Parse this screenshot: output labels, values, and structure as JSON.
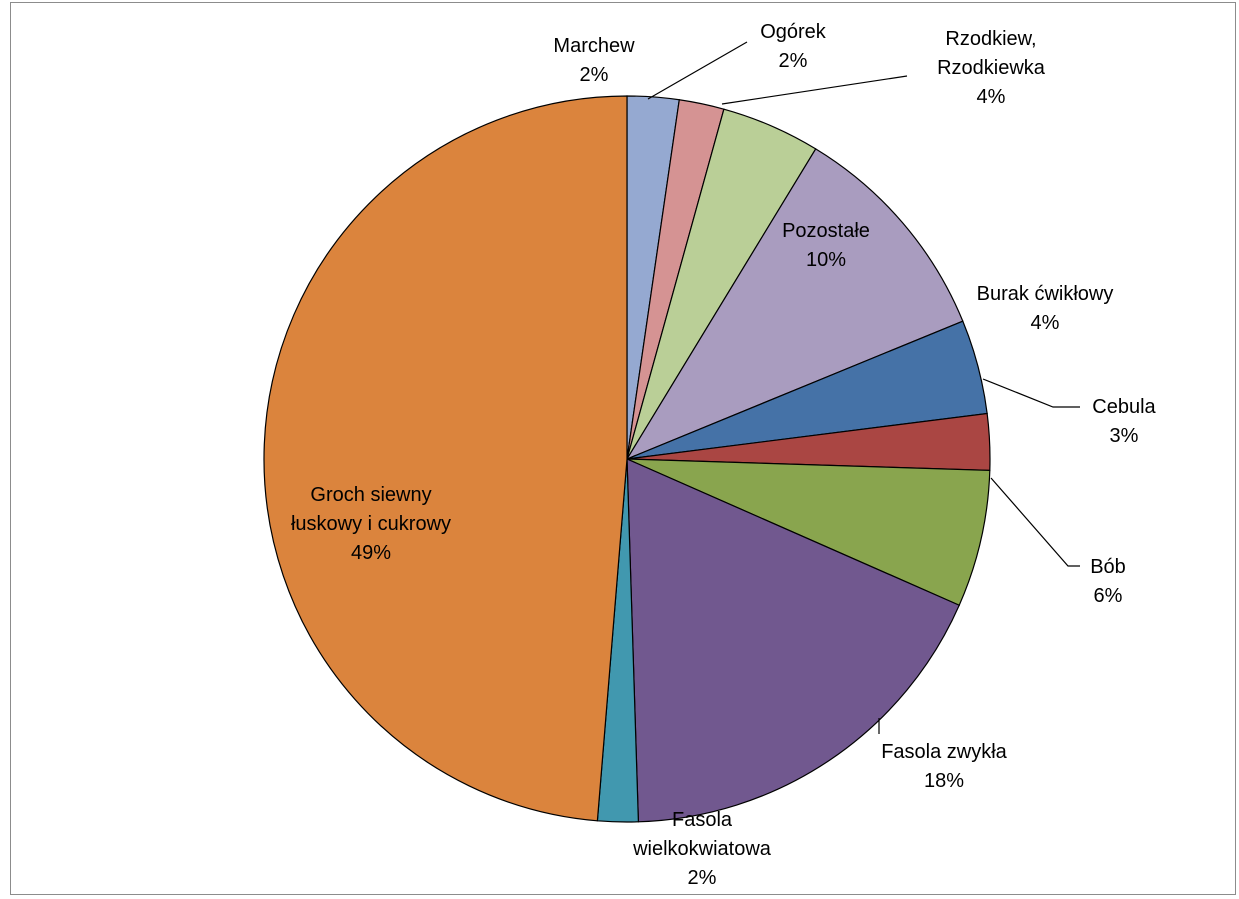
{
  "chart_data": {
    "type": "pie",
    "title": "",
    "slices": [
      {
        "name": "Marchew",
        "value": 2.3,
        "label_pct": "2%",
        "color": "#95A9D1"
      },
      {
        "name": "Ogórek",
        "value": 2.0,
        "label_pct": "2%",
        "color": "#D59393"
      },
      {
        "name": "Rzodkiew, Rzodkiewka",
        "value": 4.4,
        "label_pct": "4%",
        "color": "#BACF97"
      },
      {
        "name": "Pozostałe",
        "value": 10.1,
        "label_pct": "10%",
        "color": "#A99CBF"
      },
      {
        "name": "Burak ćwikłowy",
        "value": 4.2,
        "label_pct": "4%",
        "color": "#4572A7"
      },
      {
        "name": "Cebula",
        "value": 2.5,
        "label_pct": "3%",
        "color": "#AA4643"
      },
      {
        "name": "Bób",
        "value": 6.1,
        "label_pct": "6%",
        "color": "#89A54E"
      },
      {
        "name": "Fasola zwykła",
        "value": 17.9,
        "label_pct": "18%",
        "color": "#71588F"
      },
      {
        "name": "Fasola wielkokwiatowa",
        "value": 1.8,
        "label_pct": "2%",
        "color": "#4198AF"
      },
      {
        "name": "Groch siewny łuskowy i cukrowy",
        "value": 48.7,
        "label_pct": "49%",
        "color": "#DB843D"
      }
    ],
    "labels": [
      {
        "lines": [
          "Marchew",
          "2%"
        ]
      },
      {
        "lines": [
          "Ogórek",
          "2%"
        ]
      },
      {
        "lines": [
          "Rzodkiew,",
          "Rzodkiewka",
          "4%"
        ]
      },
      {
        "lines": [
          "Pozostałe",
          "10%"
        ]
      },
      {
        "lines": [
          "Burak ćwikłowy",
          "4%"
        ]
      },
      {
        "lines": [
          "Cebula",
          "3%"
        ]
      },
      {
        "lines": [
          "Bób",
          "6%"
        ]
      },
      {
        "lines": [
          "Fasola zwykła",
          "18%"
        ]
      },
      {
        "lines": [
          "Fasola",
          "wielkokwiatowa",
          "2%"
        ]
      },
      {
        "lines": [
          "Groch siewny",
          "łuskowy i cukrowy",
          "49%"
        ]
      }
    ],
    "legend": "none"
  }
}
